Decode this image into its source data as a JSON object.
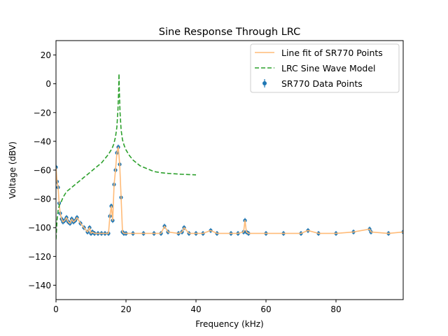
{
  "chart_data": {
    "type": "line",
    "title": "Sine Response Through LRC",
    "xlabel": "Frequency (kHz)",
    "ylabel": "Voltage (dBV)",
    "xlim": [
      0,
      99.2
    ],
    "ylim": [
      -150,
      30
    ],
    "xticks": [
      0,
      20,
      40,
      60,
      80
    ],
    "yticks": [
      20,
      0,
      -20,
      -40,
      -60,
      -80,
      -100,
      -120,
      -140
    ],
    "xtick_labels": [
      "0",
      "20",
      "40",
      "60",
      "80"
    ],
    "ytick_labels": [
      "20",
      "0",
      "−20",
      "−40",
      "−60",
      "−80",
      "−100",
      "−120",
      "−140"
    ],
    "grid": false,
    "legend_position": "top-right",
    "series": [
      {
        "name": "Line fit of SR770 Points",
        "style": "line",
        "color": "#ffbb78",
        "x": [
          0,
          0.3,
          0.6,
          0.9,
          1.2,
          1.6,
          2,
          2.5,
          3,
          3.5,
          4,
          4.5,
          5,
          5.5,
          6,
          7,
          8,
          9,
          9.6,
          10,
          10.4,
          11,
          12,
          13,
          14,
          15,
          15.4,
          15.8,
          16.2,
          16.6,
          17,
          17.4,
          17.8,
          18.2,
          18.6,
          19,
          19.4,
          20,
          22,
          25,
          28,
          30,
          31,
          32,
          35,
          36,
          36.6,
          38,
          40,
          42,
          44.2,
          46,
          50,
          52,
          53.6,
          54,
          54.4,
          55,
          60,
          65,
          70,
          72,
          75,
          80,
          85,
          89.6,
          90,
          95,
          99.2
        ],
        "values": [
          -58,
          -68,
          -72,
          -83,
          -90,
          -94,
          -96,
          -95,
          -93,
          -96,
          -97,
          -94,
          -96,
          -95,
          -93,
          -97,
          -100,
          -103,
          -100,
          -104,
          -103,
          -104,
          -104,
          -104,
          -104,
          -104,
          -92,
          -85,
          -95,
          -70,
          -60,
          -48,
          -44,
          -56,
          -79,
          -103,
          -104,
          -104,
          -104,
          -104,
          -104,
          -104,
          -99,
          -103,
          -104,
          -103,
          -100,
          -104,
          -104,
          -104,
          -102,
          -104,
          -104,
          -104,
          -103,
          -95,
          -103,
          -104,
          -104,
          -104,
          -104,
          -102,
          -104,
          -104,
          -103,
          -101,
          -103,
          -104,
          -103
        ]
      },
      {
        "name": "LRC Sine Wave Model",
        "style": "dashed",
        "color": "#2ca02c",
        "x": [
          0,
          0.3,
          0.6,
          1,
          1.5,
          2,
          3,
          4,
          5,
          6,
          7,
          8,
          9,
          10,
          11,
          12,
          13,
          14,
          15,
          16,
          16.5,
          17,
          17.4,
          17.7,
          17.9,
          18,
          18.1,
          18.3,
          18.6,
          19,
          19.5,
          20,
          21,
          22,
          23,
          24,
          25,
          26,
          27,
          28,
          30,
          32,
          34,
          36,
          38,
          40
        ],
        "values": [
          -108,
          -95,
          -88,
          -84,
          -82,
          -79,
          -75,
          -73,
          -71,
          -69,
          -67,
          -65,
          -63,
          -61,
          -59,
          -57,
          -55,
          -52,
          -49,
          -45,
          -42,
          -37,
          -30,
          -18,
          -5,
          7,
          -5,
          -20,
          -32,
          -39,
          -43,
          -46,
          -50,
          -53,
          -55,
          -57,
          -58,
          -59,
          -60,
          -61,
          -61.8,
          -62.3,
          -62.6,
          -62.9,
          -63.1,
          -63.3
        ]
      },
      {
        "name": "SR770 Data Points",
        "style": "points",
        "color": "#1f77b4",
        "x": [
          0,
          0.3,
          0.6,
          0.9,
          1.2,
          1.6,
          2,
          2.5,
          3,
          3.5,
          4,
          4.5,
          5,
          5.5,
          6,
          7,
          8,
          9,
          9.6,
          10,
          10.4,
          11,
          12,
          13,
          14,
          15,
          15.4,
          15.8,
          16.2,
          16.6,
          17,
          17.4,
          17.8,
          18.2,
          18.6,
          19,
          19.4,
          20,
          22,
          25,
          28,
          30,
          31,
          32,
          35,
          36,
          36.6,
          38,
          40,
          42,
          44.2,
          46,
          50,
          52,
          53.6,
          54,
          54.4,
          55,
          60,
          65,
          70,
          72,
          75,
          80,
          85,
          89.6,
          90,
          95,
          99.2
        ],
        "values": [
          -58,
          -68,
          -72,
          -83,
          -90,
          -94,
          -96,
          -95,
          -93,
          -96,
          -97,
          -94,
          -96,
          -95,
          -93,
          -97,
          -100,
          -103,
          -100,
          -104,
          -103,
          -104,
          -104,
          -104,
          -104,
          -104,
          -92,
          -85,
          -95,
          -70,
          -60,
          -48,
          -44,
          -56,
          -79,
          -103,
          -104,
          -104,
          -104,
          -104,
          -104,
          -104,
          -99,
          -103,
          -104,
          -103,
          -100,
          -104,
          -104,
          -104,
          -102,
          -104,
          -104,
          -104,
          -103,
          -95,
          -103,
          -104,
          -104,
          -104,
          -104,
          -102,
          -104,
          -104,
          -103,
          -101,
          -103,
          -104,
          -103
        ]
      }
    ]
  }
}
